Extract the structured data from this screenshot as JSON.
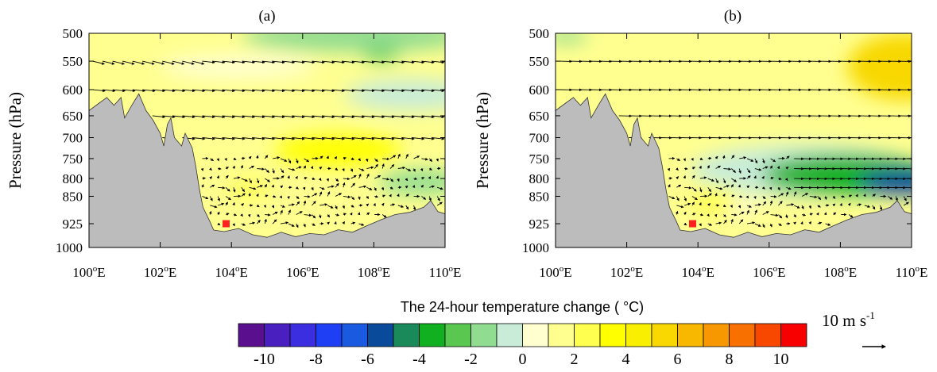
{
  "chart_data": [
    {
      "type": "heatmap",
      "panel_label": "(a)",
      "ylabel": "Pressure (hPa)",
      "y_ticks": [
        "500",
        "550",
        "600",
        "650",
        "700",
        "750",
        "800",
        "850",
        "925",
        "1000"
      ],
      "x_ticks": [
        "100",
        "102",
        "104",
        "106",
        "108",
        "110"
      ],
      "x_unit": "E",
      "xlim": [
        100,
        110
      ],
      "ylim": [
        1000,
        500
      ],
      "vectors_on": true,
      "marker": {
        "lon": 103.85,
        "p": 925,
        "color": "#ff2020"
      },
      "terrain": [
        [
          100,
          640
        ],
        [
          100.3,
          625
        ],
        [
          100.5,
          615
        ],
        [
          100.7,
          630
        ],
        [
          100.9,
          615
        ],
        [
          101.0,
          655
        ],
        [
          101.2,
          630
        ],
        [
          101.4,
          608
        ],
        [
          101.6,
          640
        ],
        [
          101.8,
          660
        ],
        [
          102.0,
          690
        ],
        [
          102.1,
          720
        ],
        [
          102.2,
          670
        ],
        [
          102.3,
          655
        ],
        [
          102.4,
          700
        ],
        [
          102.6,
          720
        ],
        [
          102.7,
          690
        ],
        [
          102.9,
          725
        ],
        [
          103.0,
          770
        ],
        [
          103.1,
          830
        ],
        [
          103.2,
          880
        ],
        [
          103.4,
          920
        ],
        [
          103.5,
          945
        ],
        [
          103.8,
          950
        ],
        [
          104.2,
          940
        ],
        [
          104.6,
          960
        ],
        [
          105.0,
          968
        ],
        [
          105.4,
          952
        ],
        [
          105.8,
          966
        ],
        [
          106.2,
          956
        ],
        [
          106.6,
          960
        ],
        [
          107.0,
          944
        ],
        [
          107.4,
          952
        ],
        [
          107.8,
          932
        ],
        [
          108.2,
          914
        ],
        [
          108.6,
          900
        ],
        [
          109.0,
          894
        ],
        [
          109.4,
          880
        ],
        [
          109.6,
          862
        ],
        [
          109.8,
          892
        ],
        [
          110,
          898
        ]
      ],
      "anomalies": [
        {
          "lon": 107.5,
          "p": 505,
          "rx": 3.2,
          "ry": 28,
          "value": -1.2
        },
        {
          "lon": 108.2,
          "p": 540,
          "rx": 0.5,
          "ry": 10,
          "value": -2.5
        },
        {
          "lon": 109.0,
          "p": 610,
          "rx": 1.8,
          "ry": 30,
          "value": -1.0
        },
        {
          "lon": 104.2,
          "p": 560,
          "rx": 2.2,
          "ry": 22,
          "value": 0.4
        },
        {
          "lon": 109.3,
          "p": 810,
          "rx": 1.2,
          "ry": 35,
          "value": -2.0
        },
        {
          "lon": 107.0,
          "p": 730,
          "rx": 1.8,
          "ry": 40,
          "value": 3.2
        },
        {
          "lon": 104.5,
          "p": 830,
          "rx": 0.6,
          "ry": 25,
          "value": 2.6
        }
      ]
    },
    {
      "type": "heatmap",
      "panel_label": "(b)",
      "ylabel": "Pressure (hPa)",
      "y_ticks": [
        "500",
        "550",
        "600",
        "650",
        "700",
        "750",
        "800",
        "850",
        "925",
        "1000"
      ],
      "x_ticks": [
        "100",
        "102",
        "104",
        "106",
        "108",
        "110"
      ],
      "x_unit": "E",
      "xlim": [
        100,
        110
      ],
      "ylim": [
        1000,
        500
      ],
      "vectors_on": true,
      "marker": {
        "lon": 103.85,
        "p": 925,
        "color": "#ff2020"
      },
      "terrain": [
        [
          100,
          640
        ],
        [
          100.3,
          625
        ],
        [
          100.5,
          615
        ],
        [
          100.7,
          630
        ],
        [
          100.9,
          615
        ],
        [
          101.0,
          655
        ],
        [
          101.2,
          630
        ],
        [
          101.4,
          608
        ],
        [
          101.6,
          640
        ],
        [
          101.8,
          660
        ],
        [
          102.0,
          690
        ],
        [
          102.1,
          720
        ],
        [
          102.2,
          670
        ],
        [
          102.3,
          655
        ],
        [
          102.4,
          700
        ],
        [
          102.6,
          720
        ],
        [
          102.7,
          690
        ],
        [
          102.9,
          725
        ],
        [
          103.0,
          770
        ],
        [
          103.1,
          830
        ],
        [
          103.2,
          880
        ],
        [
          103.4,
          920
        ],
        [
          103.5,
          945
        ],
        [
          103.8,
          950
        ],
        [
          104.2,
          940
        ],
        [
          104.6,
          960
        ],
        [
          105.0,
          968
        ],
        [
          105.4,
          952
        ],
        [
          105.8,
          966
        ],
        [
          106.2,
          956
        ],
        [
          106.6,
          960
        ],
        [
          107.0,
          944
        ],
        [
          107.4,
          952
        ],
        [
          107.8,
          932
        ],
        [
          108.2,
          914
        ],
        [
          108.6,
          900
        ],
        [
          109.0,
          894
        ],
        [
          109.4,
          880
        ],
        [
          109.6,
          862
        ],
        [
          109.8,
          892
        ],
        [
          110,
          898
        ]
      ],
      "anomalies": [
        {
          "lon": 109.8,
          "p": 560,
          "rx": 1.6,
          "ry": 60,
          "value": 5.0
        },
        {
          "lon": 100.3,
          "p": 505,
          "rx": 0.6,
          "ry": 12,
          "value": -1.5
        },
        {
          "lon": 107.0,
          "p": 780,
          "rx": 3.2,
          "ry": 70,
          "value": -0.5
        },
        {
          "lon": 108.2,
          "p": 790,
          "rx": 2.4,
          "ry": 55,
          "value": -3.5
        },
        {
          "lon": 109.8,
          "p": 810,
          "rx": 1.3,
          "ry": 35,
          "value": -6.0
        },
        {
          "lon": 104.5,
          "p": 860,
          "rx": 0.7,
          "ry": 40,
          "value": 2.5
        },
        {
          "lon": 105.3,
          "p": 880,
          "rx": 0.5,
          "ry": 20,
          "value": 0.0
        }
      ]
    }
  ],
  "colorbar": {
    "title": "The 24-hour temperature change ( °C)",
    "tick_labels": [
      "-10",
      "-8",
      "-6",
      "-4",
      "-2",
      "0",
      "2",
      "4",
      "6",
      "8",
      "10"
    ],
    "colors": [
      "#5a0f8f",
      "#4a1fc0",
      "#3a2ee0",
      "#1f3ff5",
      "#1a5ae0",
      "#0a4a9a",
      "#1a8a5a",
      "#10b020",
      "#5ac850",
      "#90dc90",
      "#c8ecd8",
      "#ffffd0",
      "#ffff90",
      "#ffff50",
      "#ffff00",
      "#f8f000",
      "#f8d800",
      "#f8b800",
      "#f89800",
      "#f87000",
      "#f84800",
      "#f80000"
    ]
  },
  "reference_vector": {
    "label": "10 m s",
    "superscript": "-1"
  }
}
